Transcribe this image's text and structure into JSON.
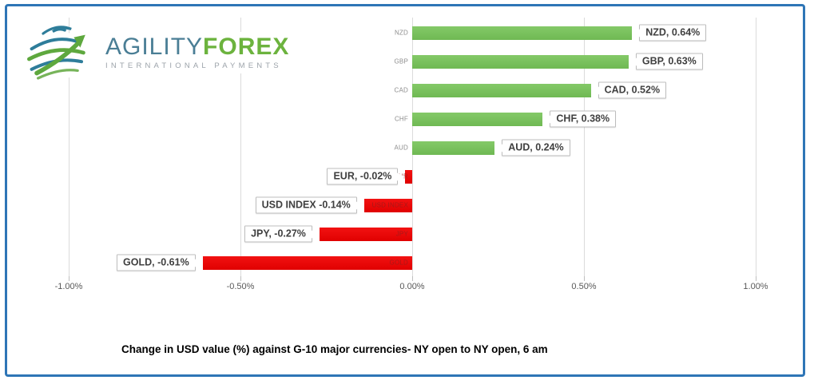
{
  "frame": {
    "border_color": "#2E75B6"
  },
  "logo": {
    "brand_primary": "AGILITY",
    "brand_secondary": "FOREX",
    "tagline": "INTERNATIONAL PAYMENTS",
    "colors": {
      "primary": "#4A7E95",
      "secondary": "#6CB33E",
      "tagline": "#9CA3AA",
      "globe_teal": "#2E7D9A",
      "globe_green": "#5EA83E"
    }
  },
  "chart_data": {
    "type": "bar",
    "orientation": "horizontal",
    "title": "Change in  USD value (%)  against  G-10 major currencies- NY open to NY open, 6 am",
    "categories": [
      "NZD",
      "GBP",
      "CAD",
      "CHF",
      "AUD",
      "EUR",
      "USD INDEX",
      "JPY",
      "GOLD"
    ],
    "values": [
      0.64,
      0.63,
      0.52,
      0.38,
      0.24,
      -0.02,
      -0.14,
      -0.27,
      -0.61
    ],
    "data_labels": [
      "NZD, 0.64%",
      "GBP, 0.63%",
      "CAD, 0.52%",
      "CHF, 0.38%",
      "AUD, 0.24%",
      "EUR, -0.02%",
      "USD INDEX -0.14%",
      "JPY, -0.27%",
      "GOLD, -0.61%"
    ],
    "axis_ticks": [
      "-1.00%",
      "-0.50%",
      "0.00%",
      "0.50%",
      "1.00%"
    ],
    "axis_tick_values": [
      -1.0,
      -0.5,
      0.0,
      0.5,
      1.0
    ],
    "xlim": [
      -1.0,
      1.0
    ],
    "positive_color": "#77BE5B",
    "negative_color": "#EE0B0B",
    "gridline_color": "#DBDBDB",
    "legend": "none",
    "grid": "vertical"
  }
}
